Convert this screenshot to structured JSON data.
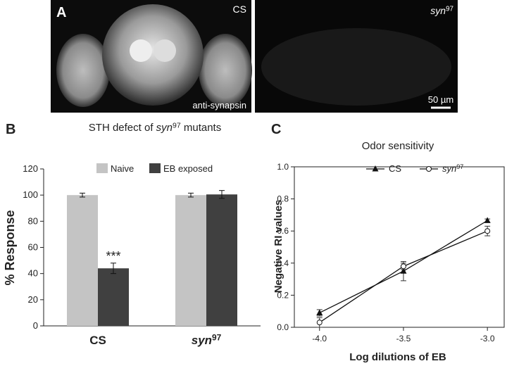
{
  "panel_a": {
    "letter": "A",
    "left_label": "CS",
    "right_label": {
      "italic": "syn",
      "sup": "97"
    },
    "stain": "anti-synapsin",
    "scale": "50 µm"
  },
  "chart_data": [
    {
      "type": "bar",
      "letter": "B",
      "title": {
        "text": "STH defect of ",
        "italic": "syn",
        "sup": "97",
        "tail": " mutants"
      },
      "ylabel": "% Response",
      "categories": [
        "CS",
        {
          "italic": "syn",
          "sup": "97"
        }
      ],
      "series": [
        {
          "name": "Naive",
          "color": "#c4c4c4",
          "values": [
            100,
            100
          ],
          "errors": [
            1.5,
            1.5
          ]
        },
        {
          "name": "EB exposed",
          "color": "#404040",
          "values": [
            44,
            100.5
          ],
          "errors": [
            4,
            3
          ]
        }
      ],
      "annotations": [
        {
          "text": "***",
          "series": 1,
          "index": 0
        }
      ],
      "ylim": [
        0,
        120
      ],
      "yticks": [
        0,
        20,
        40,
        60,
        80,
        100,
        120
      ]
    },
    {
      "type": "line",
      "letter": "C",
      "title": "Odor sensitivity",
      "xlabel": "Log dilutions of EB",
      "ylabel": "Negative RI values",
      "x": [
        -4,
        -3.5,
        -3
      ],
      "series": [
        {
          "name": "CS",
          "color": "#111111",
          "marker": "triangle",
          "values": [
            0.09,
            0.35,
            0.665
          ],
          "errors": [
            0.02,
            0.06,
            0.01
          ]
        },
        {
          "name": {
            "italic": "syn",
            "sup": "97"
          },
          "color": "#111111",
          "marker": "open-circle",
          "values": [
            0.03,
            0.38,
            0.6
          ],
          "errors": [
            0.03,
            0.02,
            0.03
          ]
        }
      ],
      "xlim": [
        -4.15,
        -2.9
      ],
      "ylim": [
        0,
        1
      ],
      "xticks": [
        {
          "value": -4,
          "label": "-4.0"
        },
        {
          "value": -3.5,
          "label": "-3.5"
        },
        {
          "value": -3,
          "label": "-3.0"
        }
      ],
      "yticks": [
        {
          "value": 0,
          "label": "0.0"
        },
        0.2,
        0.4,
        0.6,
        0.8,
        {
          "value": 1,
          "label": "1.0"
        }
      ]
    }
  ]
}
